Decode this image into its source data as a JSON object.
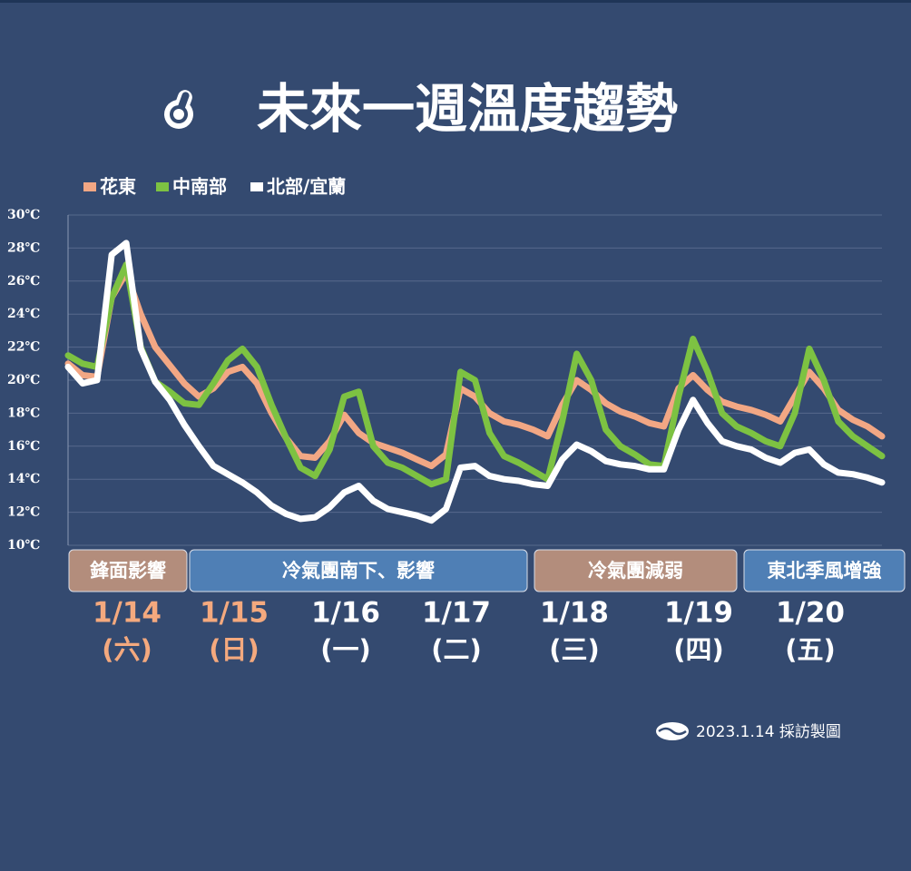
{
  "chart_data": {
    "type": "line",
    "title": "未來一週溫度趨勢",
    "categories": [
      null,
      null,
      null,
      null,
      null,
      null,
      null,
      null,
      null,
      null,
      null,
      null,
      null,
      null,
      null,
      null,
      null,
      null,
      null,
      null,
      null,
      null,
      null,
      null,
      null,
      null,
      null,
      null,
      null,
      null,
      null,
      null,
      null,
      null,
      null,
      null,
      null,
      null,
      null,
      null,
      null,
      null,
      null,
      null,
      null,
      null,
      null,
      null,
      null,
      null,
      null,
      null,
      null,
      null,
      null,
      null,
      null
    ],
    "series": [
      {
        "name": "花東",
        "color": "#f2a784",
        "values": [
          21.0,
          20.3,
          20.2,
          25.0,
          26.5,
          24.0,
          22.0,
          20.9,
          19.8,
          19.0,
          19.5,
          20.5,
          20.8,
          19.8,
          18.0,
          16.5,
          15.4,
          15.3,
          16.3,
          17.9,
          16.8,
          16.2,
          15.9,
          15.6,
          15.2,
          14.8,
          15.5,
          19.5,
          19.0,
          18.0,
          17.5,
          17.3,
          17.0,
          16.6,
          18.5,
          20.0,
          19.4,
          18.6,
          18.1,
          17.8,
          17.4,
          17.2,
          19.5,
          20.3,
          19.4,
          18.7,
          18.4,
          18.2,
          17.9,
          17.5,
          19.0,
          20.5,
          19.5,
          18.2,
          17.6,
          17.2,
          16.6
        ]
      },
      {
        "name": "中南部",
        "color": "#7dc242",
        "values": [
          21.5,
          21.0,
          20.8,
          25.0,
          27.0,
          22.0,
          19.9,
          19.3,
          18.6,
          18.5,
          19.8,
          21.2,
          21.9,
          20.8,
          18.5,
          16.5,
          14.7,
          14.2,
          15.8,
          19.0,
          19.3,
          16.0,
          15.0,
          14.7,
          14.2,
          13.7,
          14.0,
          20.5,
          20.0,
          16.8,
          15.4,
          15.0,
          14.5,
          14.0,
          17.5,
          21.6,
          20.0,
          17.0,
          16.0,
          15.5,
          14.9,
          14.8,
          19.0,
          22.5,
          20.5,
          18.0,
          17.2,
          16.8,
          16.3,
          16.0,
          18.0,
          21.9,
          20.0,
          17.5,
          16.6,
          16.0,
          15.4
        ]
      },
      {
        "name": "北部/宜蘭",
        "color": "#ffffff",
        "values": [
          20.8,
          19.8,
          20.0,
          27.6,
          28.3,
          21.9,
          19.9,
          18.8,
          17.3,
          16.0,
          14.8,
          14.3,
          13.8,
          13.2,
          12.4,
          11.9,
          11.6,
          11.7,
          12.3,
          13.2,
          13.6,
          12.7,
          12.2,
          12.0,
          11.8,
          11.5,
          12.2,
          14.7,
          14.8,
          14.2,
          14.0,
          13.9,
          13.7,
          13.6,
          15.2,
          16.1,
          15.7,
          15.1,
          14.9,
          14.8,
          14.6,
          14.6,
          17.0,
          18.8,
          17.4,
          16.3,
          16.0,
          15.8,
          15.3,
          15.0,
          15.6,
          15.8,
          14.9,
          14.4,
          14.3,
          14.1,
          13.8
        ]
      }
    ],
    "ylim": [
      10,
      30
    ],
    "yticks": [
      {
        "value": 10,
        "label": "10℃"
      },
      {
        "value": 12,
        "label": "12℃"
      },
      {
        "value": 14,
        "label": "14℃"
      },
      {
        "value": 16,
        "label": "16℃"
      },
      {
        "value": 18,
        "label": "18℃"
      },
      {
        "value": 20,
        "label": "20℃"
      },
      {
        "value": 22,
        "label": "22℃"
      },
      {
        "value": 24,
        "label": "24℃"
      },
      {
        "value": 26,
        "label": "26℃"
      },
      {
        "value": 28,
        "label": "28℃"
      },
      {
        "value": 30,
        "label": "30℃"
      }
    ],
    "grid": true,
    "periods": [
      {
        "label": "鋒面影響",
        "color": "#b38d7c"
      },
      {
        "label": "冷氣團南下、影響",
        "color": "#4f7fb5"
      },
      {
        "label": "冷氣團減弱",
        "color": "#b38d7c"
      },
      {
        "label": "東北季風增強",
        "color": "#4f7fb5"
      }
    ],
    "days": [
      {
        "date": "1/14",
        "weekday": "(六)",
        "color": "#f4a97e"
      },
      {
        "date": "1/15",
        "weekday": "(日)",
        "color": "#f4a97e"
      },
      {
        "date": "1/16",
        "weekday": "(一)",
        "color": "#ffffff"
      },
      {
        "date": "1/17",
        "weekday": "(二)",
        "color": "#ffffff"
      },
      {
        "date": "1/18",
        "weekday": "(三)",
        "color": "#ffffff"
      },
      {
        "date": "1/19",
        "weekday": "(四)",
        "color": "#ffffff"
      },
      {
        "date": "1/20",
        "weekday": "(五)",
        "color": "#ffffff"
      }
    ]
  },
  "footer": "2023.1.14 採訪製圖"
}
